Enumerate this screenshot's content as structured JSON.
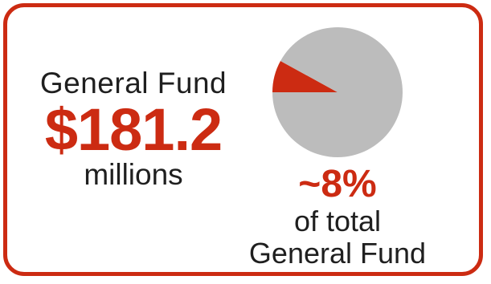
{
  "chart_data": {
    "type": "pie",
    "slices": [
      {
        "label": "General Fund share",
        "value": 8,
        "color": "#cc2b12"
      },
      {
        "label": "Rest of total General Fund",
        "value": 92,
        "color": "#bcbcbc"
      }
    ]
  },
  "text": {
    "fund_label": "General Fund",
    "amount": "$181.2",
    "units": "millions",
    "percent": "~8%",
    "of_total_line1": "of total",
    "of_total_line2": "General Fund"
  },
  "colors": {
    "accent": "#cc2b12",
    "pie_rest": "#bcbcbc",
    "text": "#1f1f1f"
  }
}
